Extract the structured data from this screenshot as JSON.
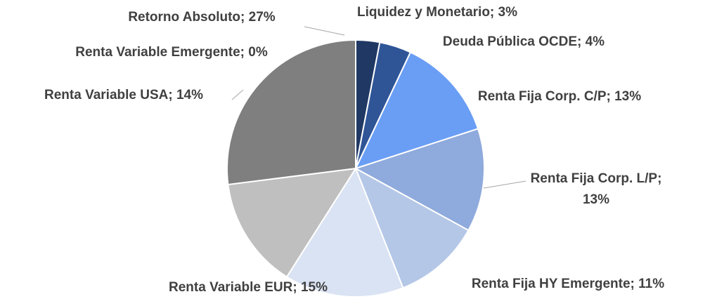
{
  "chart_data": {
    "type": "pie",
    "values": [
      3,
      4,
      13,
      13,
      11,
      15,
      14,
      0,
      27
    ],
    "value_labels": [
      "Liquidez y Monetario; 3%",
      "Deuda Pública OCDE; 4%",
      "Renta Fija Corp. C/P; 13%",
      "Renta Fija Corp. L/P; 13%",
      "Renta Fija HY Emergente; 11%",
      "Renta Variable EUR; 15%",
      "Renta Variable USA; 14%",
      "Renta Variable Emergente; 0%",
      "Retorno Absoluto; 27%"
    ],
    "colors": [
      "#203864",
      "#2f5597",
      "#6a9ef5",
      "#8faadc",
      "#b4c7e7",
      "#dae3f3",
      "#bfbfbf",
      "#a6a6a6",
      "#7f7f7f"
    ]
  }
}
